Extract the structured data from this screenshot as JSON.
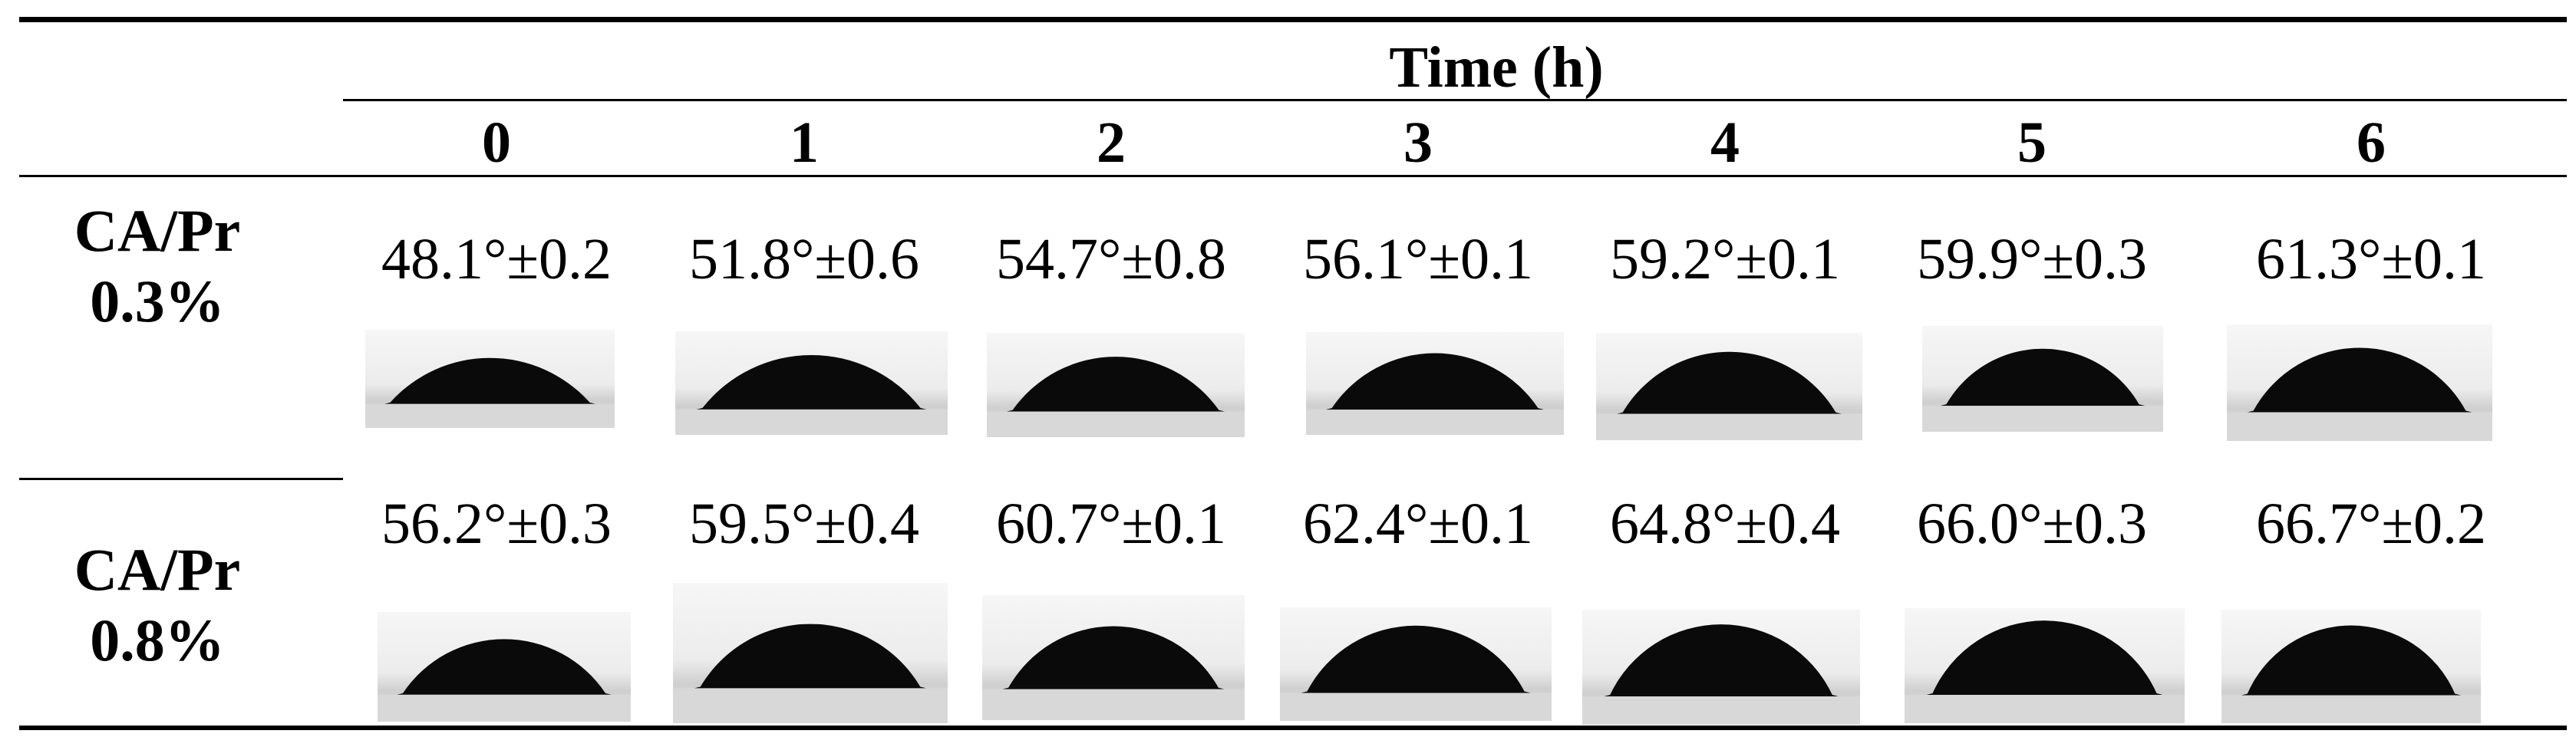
{
  "header": {
    "group_label": "Time (h)",
    "columns": [
      "0",
      "1",
      "2",
      "3",
      "4",
      "5",
      "6"
    ]
  },
  "rows": [
    {
      "label_line1": "CA/Pr",
      "label_line2": "0.3%",
      "values": [
        "48.1°±0.2",
        "51.8°±0.6",
        "54.7°±0.8",
        "56.1°±0.1",
        "59.2°±0.1",
        "59.9°±0.3",
        "61.3°±0.1"
      ],
      "contact_angles_deg": [
        48.1,
        51.8,
        54.7,
        56.1,
        59.2,
        59.9,
        61.3
      ]
    },
    {
      "label_line1": "CA/Pr",
      "label_line2": "0.8%",
      "values": [
        "56.2°±0.3",
        "59.5°±0.4",
        "60.7°±0.1",
        "62.4°±0.1",
        "64.8°±0.4",
        "66.0°±0.3",
        "66.7°±0.2"
      ],
      "contact_angles_deg": [
        56.2,
        59.5,
        60.7,
        62.4,
        64.8,
        66.0,
        66.7
      ]
    }
  ],
  "colors": {
    "droplet": "#0a0a0a",
    "rule": "#000000"
  }
}
